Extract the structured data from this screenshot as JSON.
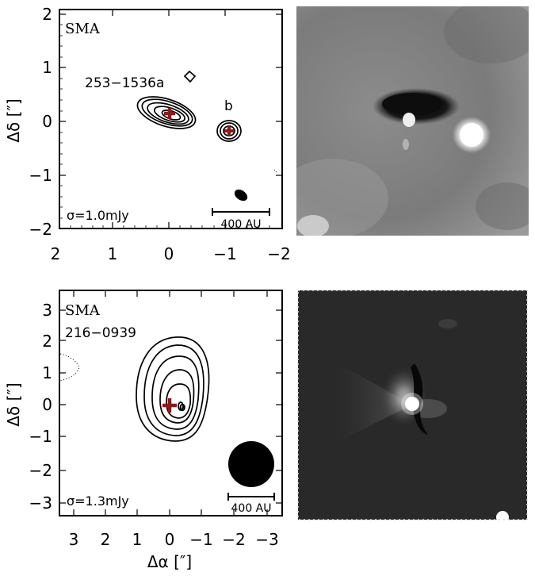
{
  "panels": {
    "top_left": {
      "instrument": "SMA",
      "source_label": "253−1536a",
      "companion_label": "b",
      "sigma_label": "σ=1.0mJy",
      "scalebar_label": "400 AU",
      "x_ticks": [
        "2",
        "1",
        "0",
        "−1",
        "−2"
      ],
      "y_ticks": [
        "2",
        "1",
        "0",
        "−1",
        "−2"
      ],
      "ylabel": "Δδ [″]"
    },
    "bottom_left": {
      "instrument": "SMA",
      "source_label": "216−0939",
      "sigma_label": "σ=1.3mJy",
      "scalebar_label": "400 AU",
      "peak_label": "0",
      "x_ticks": [
        "3",
        "2",
        "1",
        "0",
        "−1",
        "−2",
        "−3"
      ],
      "y_ticks": [
        "3",
        "2",
        "1",
        "0",
        "−1",
        "−2",
        "−3"
      ],
      "ylabel": "Δδ [″]",
      "xlabel": "Δα [″]"
    }
  },
  "colors": {
    "marker": "#8b1a1a",
    "contour": "#000000"
  }
}
